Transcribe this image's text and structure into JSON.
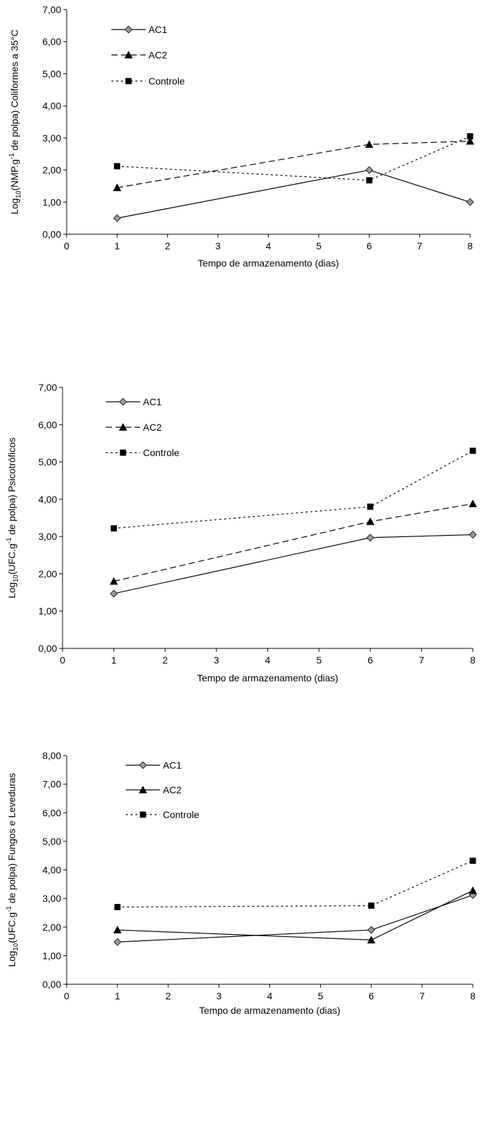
{
  "chart_data": [
    {
      "type": "line",
      "xlabel": "Tempo de armazenamento (dias)",
      "ylabel_parts": [
        "Log",
        "10",
        "(NMP.g",
        "-1",
        " de polpa) Coliformes a 35°C"
      ],
      "xlim": [
        0,
        8
      ],
      "ylim": [
        0,
        7
      ],
      "xticks": [
        "0",
        "1",
        "2",
        "3",
        "4",
        "5",
        "6",
        "7",
        "8"
      ],
      "yticks": [
        "0,00",
        "1,00",
        "2,00",
        "3,00",
        "4,00",
        "5,00",
        "6,00",
        "7,00"
      ],
      "legend_position": "top-left",
      "series": [
        {
          "name": "AC1",
          "x": [
            1,
            6,
            8
          ],
          "values": [
            0.5,
            2.0,
            1.0
          ],
          "style": "solid",
          "marker": "diamond"
        },
        {
          "name": "AC2",
          "x": [
            1,
            6,
            8
          ],
          "values": [
            1.45,
            2.8,
            2.9
          ],
          "style": "dashed",
          "marker": "triangle"
        },
        {
          "name": "Controle",
          "x": [
            1,
            6,
            8
          ],
          "values": [
            2.12,
            1.68,
            3.05
          ],
          "style": "dotted",
          "marker": "square"
        }
      ]
    },
    {
      "type": "line",
      "xlabel": "Tempo de armazenamento (dias)",
      "ylabel_parts": [
        "Log",
        "10",
        "(UFC.g",
        "-1",
        " de polpa) Psicotróficos"
      ],
      "xlim": [
        0,
        8
      ],
      "ylim": [
        0,
        7
      ],
      "xticks": [
        "0",
        "1",
        "2",
        "3",
        "4",
        "5",
        "6",
        "7",
        "8"
      ],
      "yticks": [
        "0,00",
        "1,00",
        "2,00",
        "3,00",
        "4,00",
        "5,00",
        "6,00",
        "7,00"
      ],
      "legend_position": "top-left",
      "series": [
        {
          "name": "AC1",
          "x": [
            1,
            6,
            8
          ],
          "values": [
            1.47,
            2.97,
            3.05
          ],
          "style": "solid",
          "marker": "diamond"
        },
        {
          "name": "AC2",
          "x": [
            1,
            6,
            8
          ],
          "values": [
            1.8,
            3.4,
            3.88
          ],
          "style": "dashed",
          "marker": "triangle"
        },
        {
          "name": "Controle",
          "x": [
            1,
            6,
            8
          ],
          "values": [
            3.22,
            3.8,
            5.3
          ],
          "style": "dotted",
          "marker": "square"
        }
      ]
    },
    {
      "type": "line",
      "xlabel": "Tempo de armazenamento (dias)",
      "ylabel_parts": [
        "Log",
        "10",
        "(UFC.g",
        "-1",
        " de polpa) Fungos e Leveduras"
      ],
      "xlim": [
        0,
        8
      ],
      "ylim": [
        0,
        8
      ],
      "xticks": [
        "0",
        "1",
        "2",
        "3",
        "4",
        "5",
        "6",
        "7",
        "8"
      ],
      "yticks": [
        "0,00",
        "1,00",
        "2,00",
        "3,00",
        "4,00",
        "5,00",
        "6,00",
        "7,00",
        "8,00"
      ],
      "legend_position": "top-left",
      "series": [
        {
          "name": "AC1",
          "x": [
            1,
            6,
            8
          ],
          "values": [
            1.48,
            1.9,
            3.12
          ],
          "style": "solid",
          "marker": "diamond"
        },
        {
          "name": "AC2",
          "x": [
            1,
            6,
            8
          ],
          "values": [
            1.9,
            1.55,
            3.28
          ],
          "style": "solid",
          "marker": "triangle"
        },
        {
          "name": "Controle",
          "x": [
            1,
            6,
            8
          ],
          "values": [
            2.7,
            2.75,
            4.32
          ],
          "style": "dotted",
          "marker": "square"
        }
      ]
    }
  ]
}
